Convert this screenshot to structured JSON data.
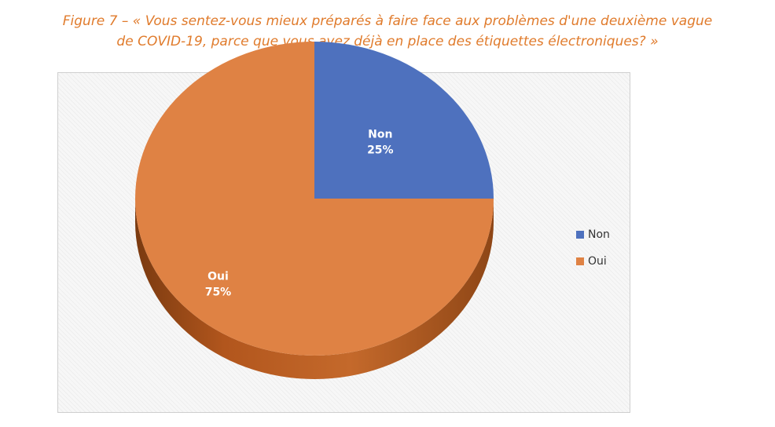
{
  "caption": {
    "line1": "Figure 7 – « Vous sentez-vous mieux préparés à faire face aux problèmes d'une deuxième vague",
    "line2": "de COVID-19, parce que vous avez déjà en place des étiquettes électroniques? »"
  },
  "colors": {
    "caption": "#e07b2c",
    "non": "#4e71be",
    "oui": "#df8244"
  },
  "chart_data": {
    "type": "pie",
    "style": "3d",
    "title": "",
    "legend_position": "right",
    "slices": [
      {
        "label": "Non",
        "value": 25,
        "percent_label": "25%",
        "color": "#4e71be"
      },
      {
        "label": "Oui",
        "value": 75,
        "percent_label": "75%",
        "color": "#df8244"
      }
    ]
  }
}
